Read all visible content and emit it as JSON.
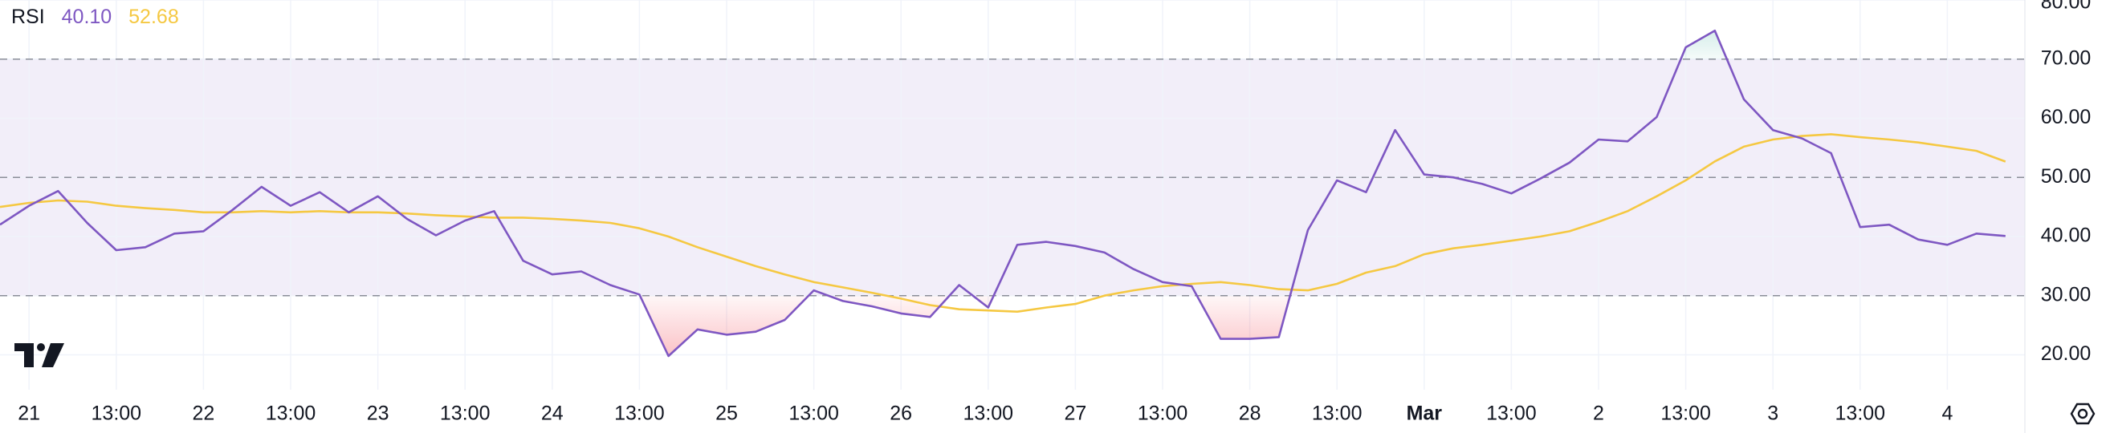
{
  "chart_data": {
    "type": "line",
    "title": "RSI",
    "categories": [
      null,
      "21",
      null,
      null,
      "13:00",
      null,
      null,
      "22",
      null,
      null,
      "13:00",
      null,
      null,
      "23",
      null,
      null,
      "13:00",
      null,
      null,
      "24",
      null,
      null,
      "13:00",
      null,
      null,
      "25",
      null,
      null,
      "13:00",
      null,
      null,
      "26",
      null,
      null,
      "13:00",
      null,
      null,
      "27",
      null,
      null,
      "13:00",
      null,
      null,
      "28",
      null,
      null,
      "13:00",
      null,
      null,
      "Mar",
      null,
      null,
      "13:00",
      null,
      null,
      "2",
      null,
      null,
      "13:00",
      null,
      null,
      "3",
      null,
      null,
      "13:00",
      null,
      null,
      "4",
      null,
      null
    ],
    "series": [
      {
        "color": "#7e57c2",
        "last_label": "40.10",
        "values": [
          42.0,
          45.2,
          47.7,
          42.3,
          37.7,
          38.2,
          40.5,
          40.9,
          44.5,
          48.4,
          45.2,
          47.5,
          44.1,
          46.8,
          43.0,
          40.2,
          42.7,
          44.3,
          35.9,
          33.6,
          34.1,
          31.8,
          30.2,
          19.8,
          24.3,
          23.4,
          23.9,
          25.9,
          30.9,
          29.1,
          28.2,
          27.0,
          26.4,
          31.8,
          28.0,
          38.6,
          39.1,
          38.4,
          37.3,
          34.5,
          32.3,
          31.6,
          22.7,
          22.7,
          23.0,
          41.1,
          49.5,
          47.5,
          58.0,
          50.5,
          50.0,
          48.9,
          47.3,
          49.8,
          52.5,
          56.4,
          56.1,
          60.2,
          72.0,
          74.8,
          63.2,
          58.0,
          56.6,
          54.1,
          41.6,
          42.0,
          39.5,
          38.6,
          40.5,
          40.1
        ]
      },
      {
        "color": "#f5c842",
        "last_label": "52.68",
        "values": [
          45.0,
          45.7,
          46.1,
          45.9,
          45.2,
          44.8,
          44.5,
          44.1,
          44.1,
          44.3,
          44.1,
          44.3,
          44.1,
          44.1,
          43.9,
          43.6,
          43.4,
          43.2,
          43.2,
          43.0,
          42.7,
          42.3,
          41.4,
          40.0,
          38.2,
          36.6,
          35.0,
          33.6,
          32.3,
          31.4,
          30.5,
          29.5,
          28.4,
          27.7,
          27.5,
          27.3,
          28.0,
          28.6,
          30.0,
          30.9,
          31.6,
          32.0,
          32.3,
          31.8,
          31.1,
          30.9,
          32.0,
          33.9,
          35.0,
          37.0,
          38.0,
          38.6,
          39.3,
          40.0,
          40.9,
          42.5,
          44.3,
          46.8,
          49.5,
          52.7,
          55.2,
          56.4,
          57.0,
          57.3,
          56.8,
          56.4,
          55.9,
          55.2,
          54.5,
          52.68
        ]
      }
    ],
    "ylim": [
      14.1,
      80
    ],
    "yticks": [
      {
        "value": 20,
        "label": "20.00"
      },
      {
        "value": 30,
        "label": "30.00"
      },
      {
        "value": 40,
        "label": "40.00"
      },
      {
        "value": 50,
        "label": "50.00"
      },
      {
        "value": 60,
        "label": "60.00"
      },
      {
        "value": 70,
        "label": "70.00"
      },
      {
        "value": 80,
        "label": "80.00"
      }
    ],
    "levels": [
      70,
      50,
      30
    ],
    "band_color": "#7e57c2",
    "grid": true
  }
}
